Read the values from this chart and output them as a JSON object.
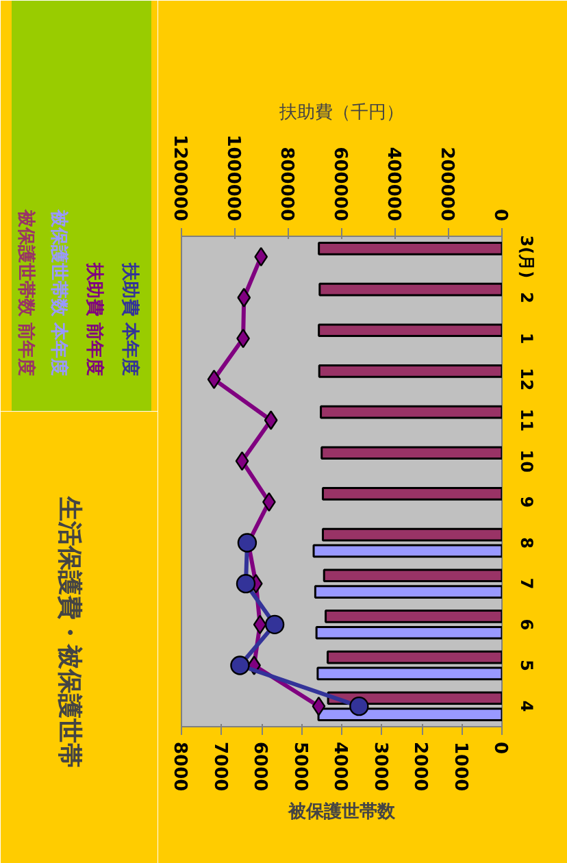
{
  "chart_data": {
    "type": "bar",
    "orientation": "horizontal",
    "title": "生活保護費・被保護世帯",
    "xlabel": "被保護世帯数",
    "x2label": "扶助費（千円）",
    "categories": [
      "3(月)",
      "2",
      "1",
      "12",
      "11",
      "10",
      "9",
      "8",
      "7",
      "6",
      "5",
      "4"
    ],
    "xlim": [
      8000,
      0
    ],
    "xticks": [
      0,
      1000,
      2000,
      3000,
      4000,
      5000,
      6000,
      7000,
      8000
    ],
    "x2lim": [
      1200000,
      0
    ],
    "x2ticks": [
      0,
      200000,
      400000,
      600000,
      800000,
      1000000,
      1200000
    ],
    "grid": false,
    "legend": "top left",
    "series": [
      {
        "name": "被保護世帯数 前年度",
        "type": "bar",
        "color": "#993366",
        "values": [
          4570,
          4550,
          4570,
          4560,
          4520,
          4500,
          4470,
          4470,
          4440,
          4400,
          4350,
          4340
        ]
      },
      {
        "name": "被保護世帯数 本年度",
        "type": "bar",
        "color": "#9999ff",
        "values": [
          null,
          null,
          null,
          null,
          null,
          null,
          null,
          4700,
          4660,
          4630,
          4600,
          4580
        ]
      },
      {
        "name": "扶助費 前年度",
        "type": "line",
        "axis": "x2",
        "color": "#800080",
        "marker": "diamond",
        "values": [
          902000,
          966000,
          969000,
          1078000,
          865000,
          973000,
          872000,
          950000,
          921000,
          906000,
          928000,
          686000
        ]
      },
      {
        "name": "扶助費 本年度",
        "type": "line",
        "axis": "x2",
        "color": "#333399",
        "marker": "circle",
        "values": [
          null,
          null,
          null,
          null,
          null,
          null,
          null,
          954000,
          959000,
          851000,
          981000,
          535000
        ]
      }
    ]
  }
}
